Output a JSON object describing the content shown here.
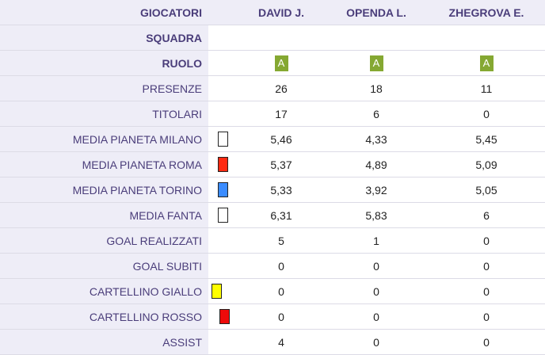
{
  "header": {
    "label": "GIOCATORI",
    "players": [
      "DAVID J.",
      "OPENDA L.",
      "ZHEGROVA E."
    ]
  },
  "rows": [
    {
      "label": "SQUADRA",
      "values": [
        "",
        "",
        ""
      ]
    },
    {
      "label": "RUOLO",
      "role": "A",
      "values": [
        "A",
        "A",
        "A"
      ]
    },
    {
      "label": "PRESENZE",
      "values": [
        "26",
        "18",
        "11"
      ]
    },
    {
      "label": "TITOLARI",
      "values": [
        "17",
        "6",
        "0"
      ]
    },
    {
      "label": "MEDIA PIANETA MILANO",
      "icon": "card-white-icon",
      "icon_color": "#ffffff",
      "values": [
        "5,46",
        "4,33",
        "5,45"
      ]
    },
    {
      "label": "MEDIA PIANETA ROMA",
      "icon": "card-red-icon",
      "icon_color": "#ff2a12",
      "values": [
        "5,37",
        "4,89",
        "5,09"
      ]
    },
    {
      "label": "MEDIA PIANETA TORINO",
      "icon": "card-blue-icon",
      "icon_color": "#3b8cff",
      "values": [
        "5,33",
        "3,92",
        "5,05"
      ]
    },
    {
      "label": "MEDIA FANTA",
      "icon": "card-white-icon",
      "icon_color": "#ffffff",
      "values": [
        "6,31",
        "5,83",
        "6"
      ]
    },
    {
      "label": "GOAL REALIZZATI",
      "values": [
        "5",
        "1",
        "0"
      ]
    },
    {
      "label": "GOAL SUBITI",
      "values": [
        "0",
        "0",
        "0"
      ]
    },
    {
      "label": "CARTELLINO GIALLO",
      "icon": "yellow-card-icon",
      "icon_color": "#ffff00",
      "values": [
        "0",
        "0",
        "0"
      ]
    },
    {
      "label": "CARTELLINO ROSSO",
      "icon": "red-card-icon",
      "icon_color": "#ee0a0a",
      "values": [
        "0",
        "0",
        "0"
      ]
    },
    {
      "label": "ASSIST",
      "values": [
        "4",
        "0",
        "0"
      ]
    }
  ],
  "colors": {
    "role_badge": "#85a832",
    "label_bg": "#eeedf7",
    "label_text": "#4a3d7a"
  }
}
